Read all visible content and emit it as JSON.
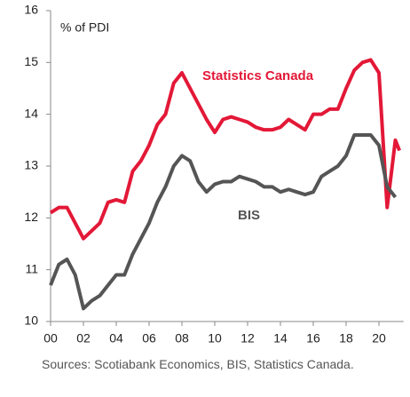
{
  "chart_data": {
    "type": "line",
    "y_label": "% of PDI",
    "source": "Sources: Scotiabank Economics, BIS, Statistics Canada.",
    "x": [
      2000,
      2000.5,
      2001,
      2001.5,
      2002,
      2002.5,
      2003,
      2003.5,
      2004,
      2004.5,
      2005,
      2005.5,
      2006,
      2006.5,
      2007,
      2007.5,
      2008,
      2008.5,
      2009,
      2009.5,
      2010,
      2010.5,
      2011,
      2011.5,
      2012,
      2012.5,
      2013,
      2013.5,
      2014,
      2014.5,
      2015,
      2015.5,
      2016,
      2016.5,
      2017,
      2017.5,
      2018,
      2018.5,
      2019,
      2019.5,
      2020,
      2020.5,
      2021,
      2021.25
    ],
    "series": [
      {
        "name": "Statistics Canada",
        "color": "#e31837",
        "values": [
          12.1,
          12.2,
          12.2,
          11.9,
          11.6,
          11.75,
          11.9,
          12.3,
          12.35,
          12.3,
          12.9,
          13.1,
          13.4,
          13.8,
          14.0,
          14.6,
          14.8,
          14.5,
          14.2,
          13.9,
          13.65,
          13.9,
          13.95,
          13.9,
          13.85,
          13.75,
          13.7,
          13.7,
          13.75,
          13.9,
          13.8,
          13.7,
          14.0,
          14.0,
          14.1,
          14.1,
          14.5,
          14.85,
          15.0,
          15.05,
          14.8,
          12.2,
          13.5,
          13.3
        ]
      },
      {
        "name": "BIS",
        "color": "#555555",
        "values": [
          10.7,
          11.1,
          11.2,
          10.9,
          10.25,
          10.4,
          10.5,
          10.7,
          10.9,
          10.9,
          11.3,
          11.6,
          11.9,
          12.3,
          12.6,
          13.0,
          13.2,
          13.1,
          12.7,
          12.5,
          12.65,
          12.7,
          12.7,
          12.8,
          12.75,
          12.7,
          12.6,
          12.6,
          12.5,
          12.55,
          12.5,
          12.45,
          12.5,
          12.8,
          12.9,
          13.0,
          13.2,
          13.6,
          13.6,
          13.6,
          13.4,
          12.6,
          12.4,
          null
        ]
      }
    ],
    "xlim": [
      2000,
      2021.5
    ],
    "xticks": [
      {
        "value": 2000,
        "label": "00"
      },
      {
        "value": 2002,
        "label": "02"
      },
      {
        "value": 2004,
        "label": "04"
      },
      {
        "value": 2006,
        "label": "06"
      },
      {
        "value": 2008,
        "label": "08"
      },
      {
        "value": 2010,
        "label": "10"
      },
      {
        "value": 2012,
        "label": "12"
      },
      {
        "value": 2014,
        "label": "14"
      },
      {
        "value": 2016,
        "label": "16"
      },
      {
        "value": 2018,
        "label": "18"
      },
      {
        "value": 2020,
        "label": "20"
      }
    ],
    "ylim": [
      10,
      16
    ],
    "yticks": [
      10,
      11,
      12,
      13,
      14,
      15,
      16
    ],
    "grid": false
  }
}
